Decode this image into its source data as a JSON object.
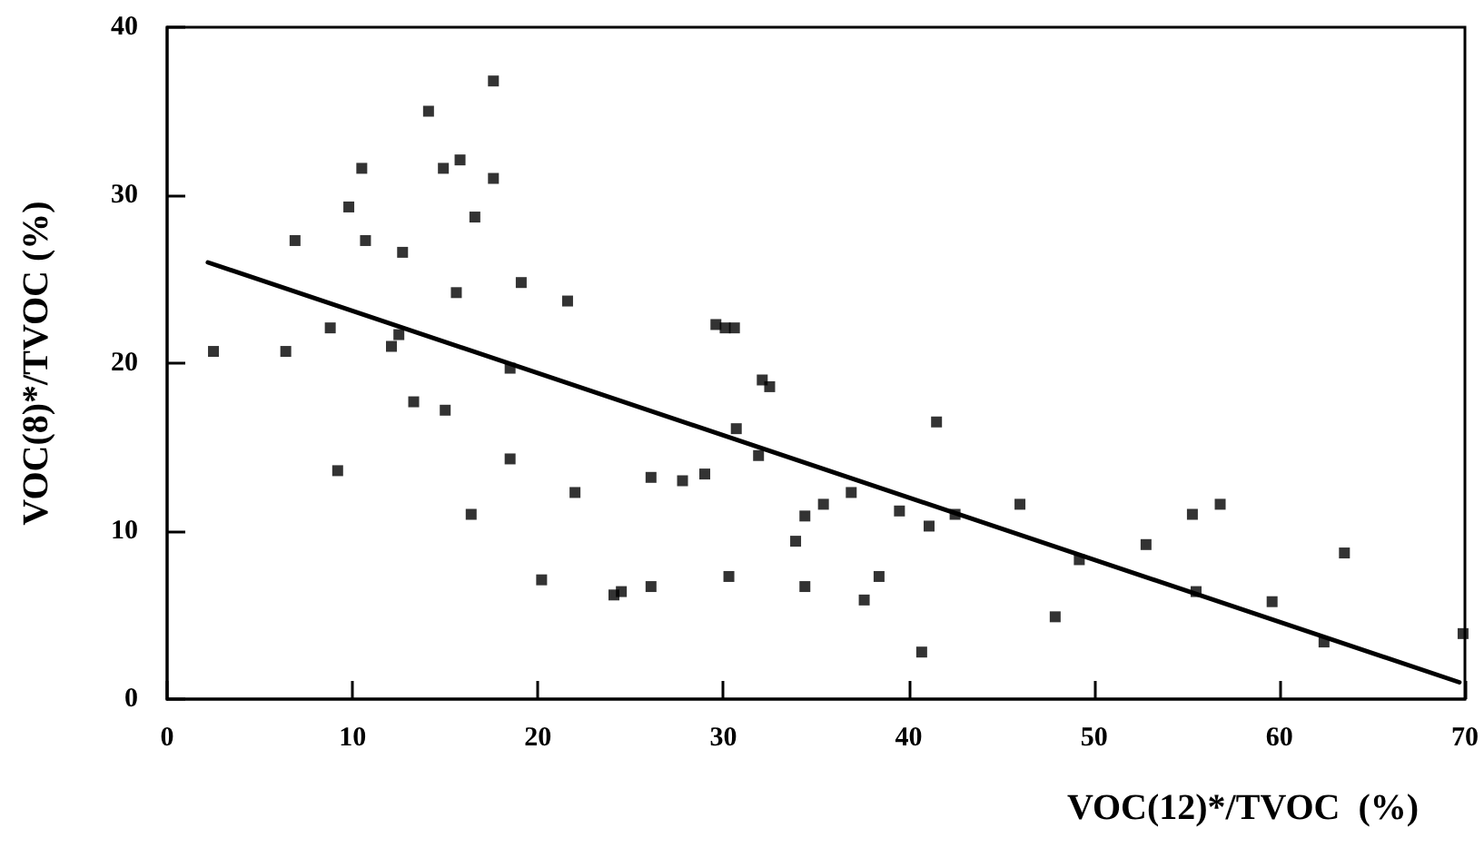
{
  "chart_data": {
    "type": "scatter",
    "xlabel": "VOC(12)*/TVOC  (%)",
    "ylabel": "VOC(8)*/TVOC (%)",
    "xlim": [
      0,
      70
    ],
    "xticks": [
      0,
      10,
      20,
      30,
      40,
      50,
      60,
      70
    ],
    "ylim": [
      0,
      40
    ],
    "yticks": [
      0,
      10,
      20,
      30,
      40
    ],
    "grid": false,
    "series": [
      {
        "marker": "square",
        "color": "#000000",
        "x": [
          17.6,
          14.1,
          10.5,
          14.9,
          15.8,
          17.6,
          9.8,
          16.6,
          6.9,
          10.7,
          12.7,
          15.6,
          19.1,
          21.6,
          8.8,
          2.5,
          6.4,
          12.5,
          12.1,
          18.5,
          13.3,
          15.0,
          9.2,
          18.5,
          22.0,
          16.4,
          20.2,
          29.6,
          30.1,
          30.6,
          32.1,
          32.5,
          30.7,
          41.5,
          31.9,
          26.1,
          27.8,
          29.0,
          36.9,
          35.4,
          34.4,
          39.5,
          41.1,
          42.5,
          46.0,
          33.9,
          24.1,
          24.5,
          26.1,
          30.3,
          34.4,
          37.6,
          38.4,
          40.7,
          55.3,
          56.8,
          52.8,
          49.2,
          63.5,
          55.5,
          47.9,
          59.6,
          62.4,
          69.9
        ],
        "values": [
          36.8,
          35.0,
          31.6,
          31.6,
          32.1,
          31.0,
          29.3,
          28.7,
          27.3,
          27.3,
          26.6,
          24.2,
          24.8,
          23.7,
          22.1,
          20.7,
          20.7,
          21.7,
          21.0,
          19.7,
          17.7,
          17.2,
          13.6,
          14.3,
          12.3,
          11.0,
          7.1,
          22.3,
          22.1,
          22.1,
          19.0,
          18.6,
          16.1,
          16.5,
          14.5,
          13.2,
          13.0,
          13.4,
          12.3,
          11.6,
          10.9,
          11.2,
          10.3,
          11.0,
          11.6,
          9.4,
          6.2,
          6.4,
          6.7,
          7.3,
          6.7,
          5.9,
          7.3,
          2.8,
          11.0,
          11.6,
          9.2,
          8.3,
          8.7,
          6.4,
          4.9,
          5.8,
          3.4,
          3.9
        ]
      },
      {
        "type": "line",
        "marker": "none",
        "color": "#000000",
        "x": [
          2.2,
          69.7
        ],
        "values": [
          26.0,
          1.0
        ]
      }
    ]
  }
}
